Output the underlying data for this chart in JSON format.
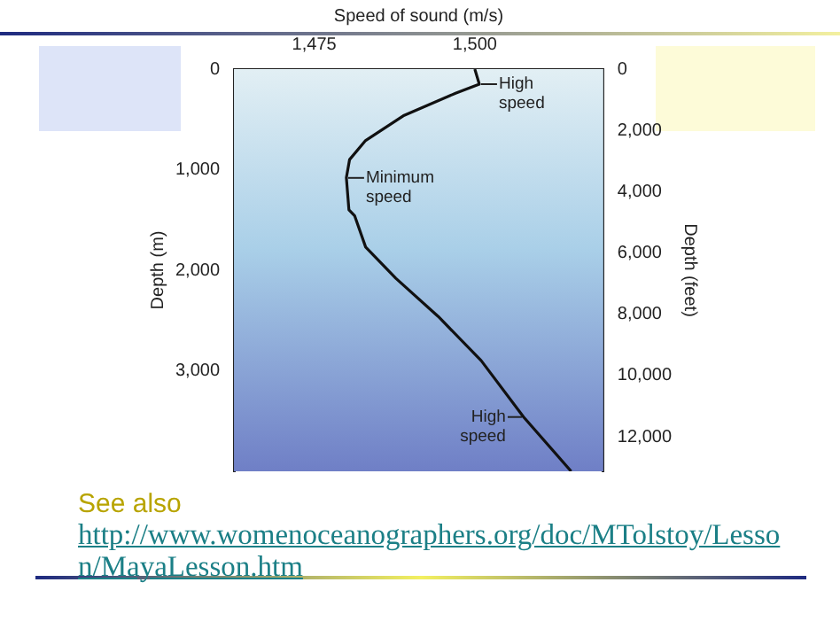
{
  "chart_data": {
    "type": "line",
    "xlabel": "Speed of sound (m/s)",
    "ylabel": "Depth (m)",
    "y2label": "Depth (feet)",
    "x": [
      1500,
      1500.7,
      1497,
      1489,
      1483,
      1480.5,
      1480,
      1480.4,
      1481.3,
      1483,
      1487.7,
      1494.3,
      1501,
      1507.6,
      1515
    ],
    "series": [
      {
        "color": "#111111",
        "values": [
          0,
          150,
          240,
          460,
          710,
          900,
          1080,
          1400,
          1460,
          1770,
          2080,
          2460,
          2900,
          3460,
          4000
        ]
      }
    ],
    "xlim": [
      1462.5,
      1520
    ],
    "xticks": [
      {
        "value": 1475,
        "label": "1,475"
      },
      {
        "value": 1500,
        "label": "1,500"
      }
    ],
    "ylim": [
      4000,
      0
    ],
    "yticks": [
      0,
      {
        "value": 1000,
        "label": "1,000"
      },
      {
        "value": 2000,
        "label": "2,000"
      },
      {
        "value": 3000,
        "label": "3,000"
      }
    ],
    "y2lim": [
      13123,
      0
    ],
    "y2ticks": [
      0,
      {
        "value": 2000,
        "label": "2,000"
      },
      {
        "value": 4000,
        "label": "4,000"
      },
      {
        "value": 6000,
        "label": "6,000"
      },
      {
        "value": 8000,
        "label": "8,000"
      },
      {
        "value": 10000,
        "label": "10,000"
      },
      {
        "value": 12000,
        "label": "12,000"
      }
    ],
    "grid": false,
    "legend": false,
    "marker": "none",
    "annotations": [
      {
        "text": "High speed",
        "x": 1500.7,
        "y": 150
      },
      {
        "text": "Minimum speed",
        "x": 1480,
        "y": 1082
      },
      {
        "text": "High speed",
        "x": 1507.6,
        "y": 3460
      },
      "See also",
      "http://www.womenoceanographers.org/doc/MTolstoy/Lesson/MayaLesson.htm"
    ]
  }
}
